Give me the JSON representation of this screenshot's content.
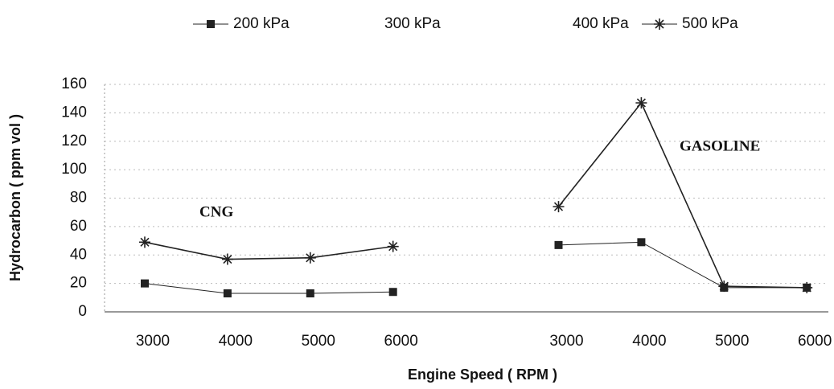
{
  "chart_data": {
    "type": "line",
    "x_label": "Engine Speed ( RPM )",
    "y_label": "Hydrocarbon ( ppm vol )",
    "categories": [
      "3000",
      "4000",
      "5000",
      "6000",
      null,
      "3000",
      "4000",
      "5000",
      "6000"
    ],
    "series": [
      {
        "name": "200 kPa",
        "color": "#222222",
        "marker": "square",
        "values": [
          20,
          13,
          13,
          14,
          null,
          47,
          49,
          17,
          17
        ]
      },
      {
        "name": "300 kPa",
        "color": "#222222",
        "marker": "none",
        "values": [
          null,
          null,
          null,
          null,
          null,
          null,
          null,
          null,
          null
        ]
      },
      {
        "name": "400 kPa",
        "color": "#222222",
        "marker": "none",
        "values": [
          null,
          null,
          null,
          null,
          null,
          null,
          null,
          null,
          null
        ]
      },
      {
        "name": "500 kPa",
        "color": "#222222",
        "marker": "star",
        "values": [
          49,
          37,
          38,
          46,
          null,
          74,
          147,
          18,
          17
        ]
      }
    ],
    "annotations": [
      {
        "text": "CNG"
      },
      {
        "text": "GASOLINE"
      }
    ],
    "ylim": [
      0,
      160
    ],
    "yticks": [
      0,
      20,
      40,
      60,
      80,
      100,
      120,
      140,
      160
    ],
    "grid": true
  }
}
